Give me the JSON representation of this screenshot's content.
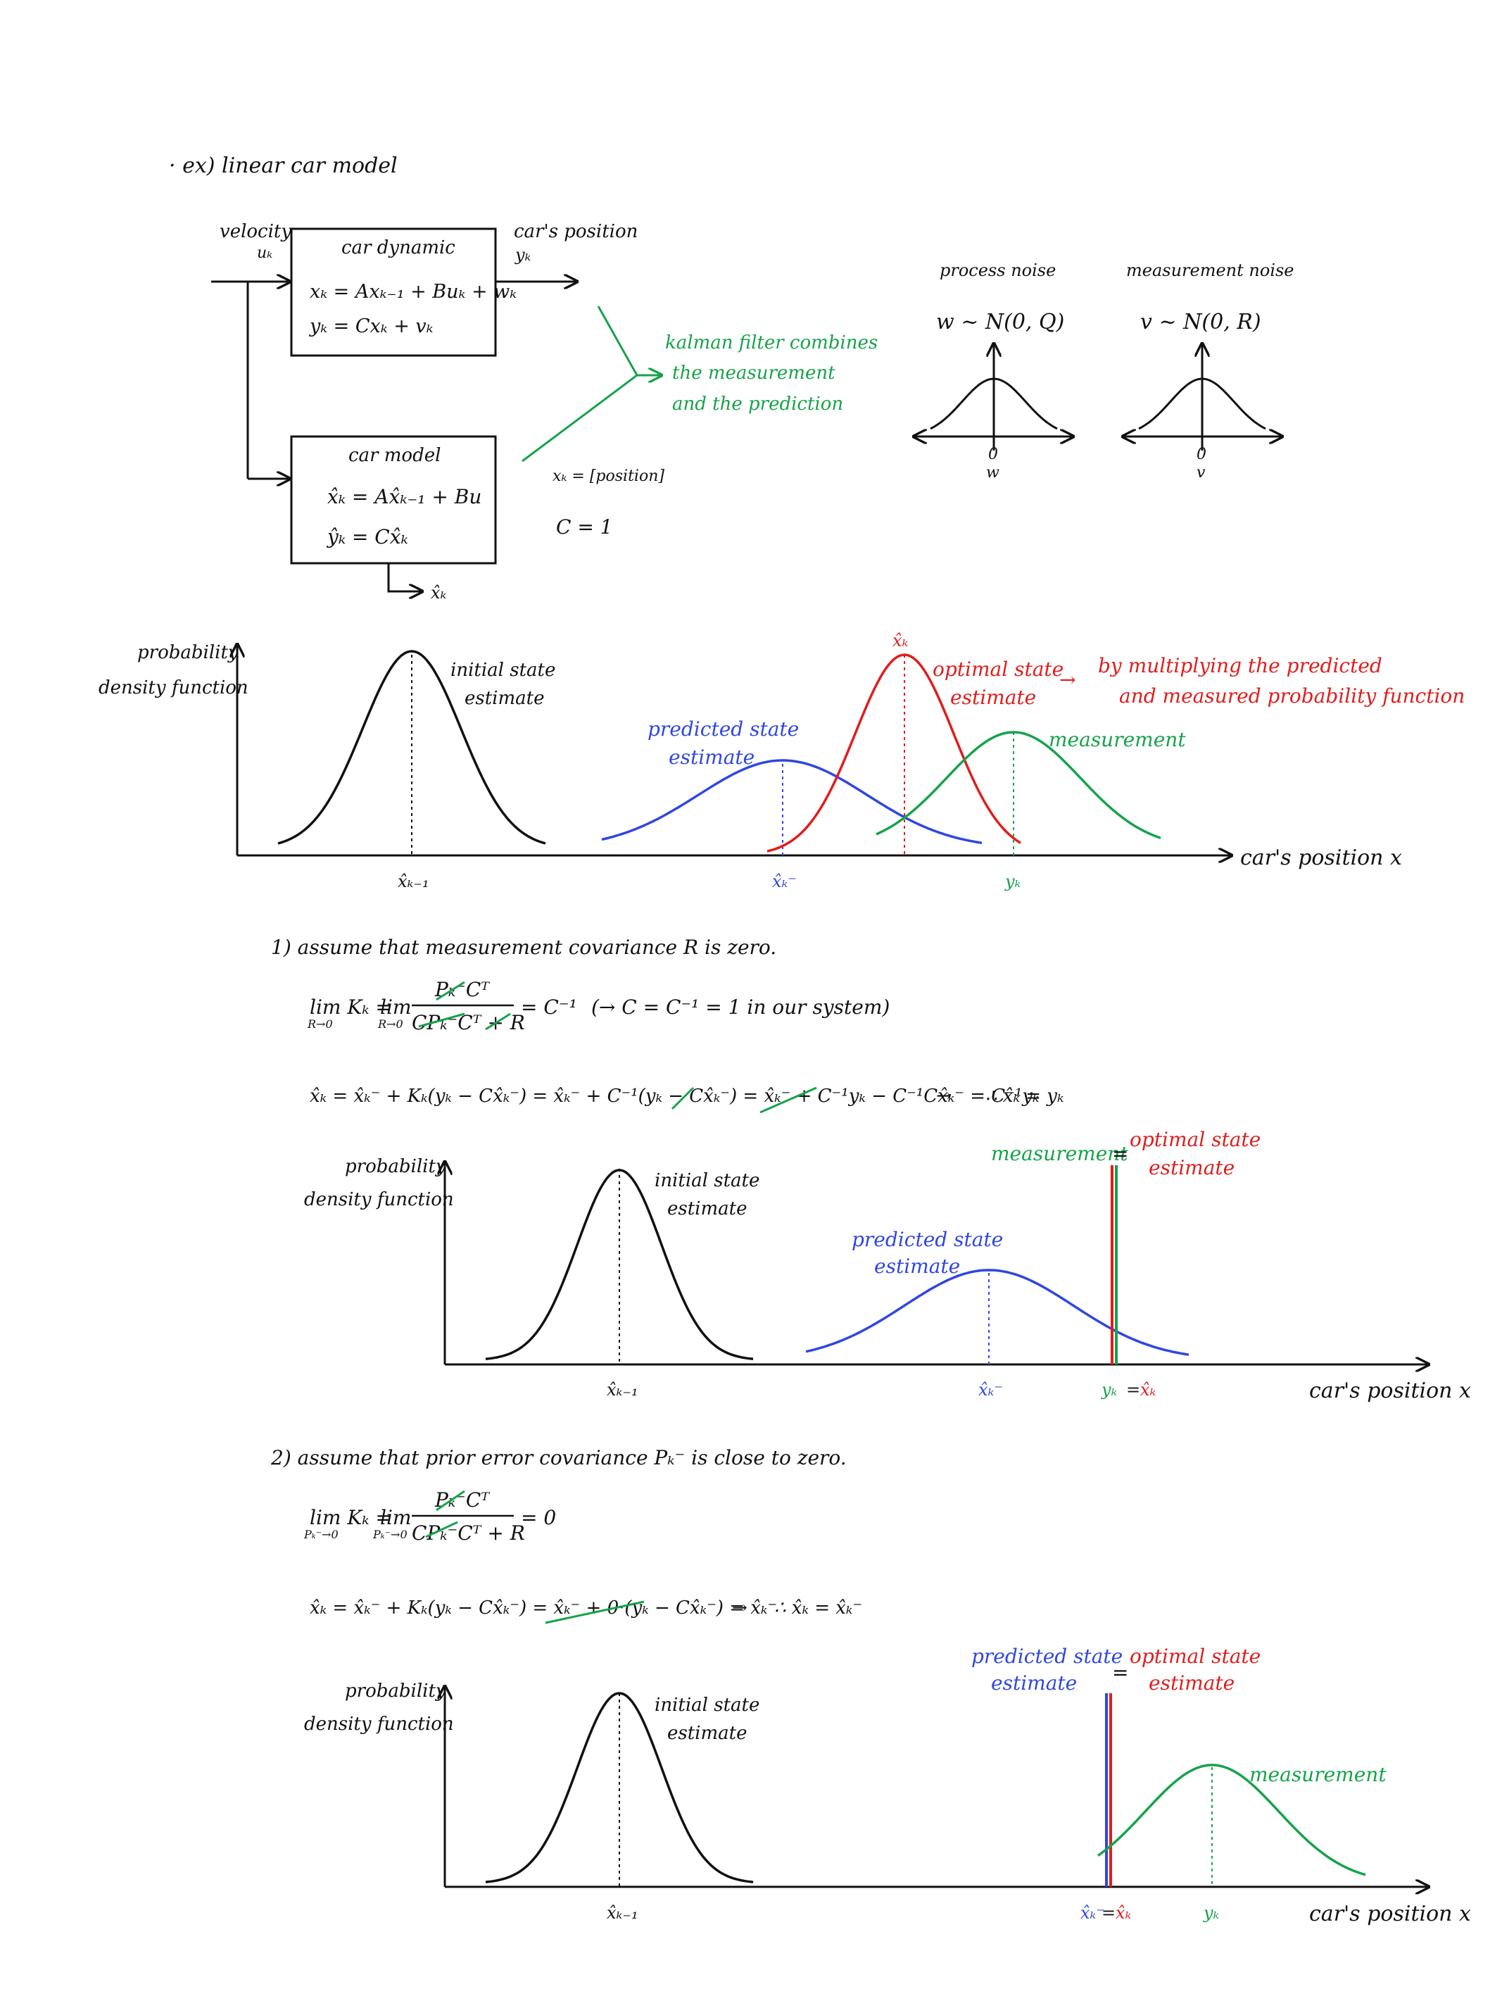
{
  "colors": {
    "ink": "#111111",
    "measurement": "#16a34a",
    "optimal": "#e11d1d",
    "predicted": "#2f47e0"
  },
  "intro": {
    "title": "· ex) linear car model"
  },
  "block_diagram": {
    "input_label": "velocity",
    "input_symbol": "uₖ",
    "output_label": "car's position",
    "output_symbol": "yₖ",
    "plant_title": "car dynamic",
    "plant_eq1": "xₖ = Axₖ₋₁ + Buₖ + wₖ",
    "plant_eq2": "yₖ = Cxₖ + vₖ",
    "model_title": "car model",
    "model_eq1": "x̂ₖ = Ax̂ₖ₋₁ + Bu",
    "model_eq2": "ŷₖ = Cx̂ₖ",
    "model_out": "x̂ₖ",
    "kalman_note": [
      "kalman filter combines",
      "the measurement",
      "and the prediction"
    ],
    "state_def": "xₖ = [position]",
    "c_def": "C = 1"
  },
  "noise": {
    "process_title": "process noise",
    "process_dist": "w ~ N(0, Q)",
    "process_zero": "0",
    "process_var": "w",
    "measure_title": "measurement noise",
    "measure_dist": "v ~ N(0, R)",
    "measure_zero": "0",
    "measure_var": "v"
  },
  "plot1": {
    "ylabel": [
      "probability",
      "density function"
    ],
    "initial": [
      "initial state",
      "estimate"
    ],
    "predicted": [
      "predicted state",
      "estimate"
    ],
    "optimal": [
      "optimal state",
      "estimate"
    ],
    "arrow_note": "→",
    "optimal_note": [
      "by multiplying the predicted",
      "and measured probability function"
    ],
    "measurement": "measurement",
    "x_prev": "x̂ₖ₋₁",
    "x_pred": "x̂ₖ⁻",
    "x_top": "x̂ₖ",
    "x_meas": "yₖ",
    "xlabel": "car's position x"
  },
  "case1": {
    "heading": "1) assume that measurement covariance R is zero.",
    "lim_left": "lim Kₖ =",
    "lim_sub": "R→0",
    "lim_mid": "lim",
    "frac_num": "Pₖ⁻Cᵀ",
    "frac_den": "CPₖ⁻Cᵀ + R",
    "lim_result": "= C⁻¹",
    "note": "(→ C = C⁻¹ = 1  in our system)",
    "update": "x̂ₖ = x̂ₖ⁻ + Kₖ(yₖ − Cx̂ₖ⁻) = x̂ₖ⁻ + C⁻¹(yₖ − Cx̂ₖ⁻) = x̂ₖ⁻ + C⁻¹yₖ − C⁻¹Cx̂ₖ⁻ = C⁻¹yₖ",
    "arrow": "→",
    "conclusion": "∴ x̂ₖ = yₖ"
  },
  "plot2": {
    "ylabel": [
      "probability",
      "density function"
    ],
    "initial": [
      "initial state",
      "estimate"
    ],
    "predicted": [
      "predicted state",
      "estimate"
    ],
    "measurement": "measurement",
    "equals": "=",
    "optimal": [
      "optimal state",
      "estimate"
    ],
    "x_prev": "x̂ₖ₋₁",
    "x_pred": "x̂ₖ⁻",
    "x_meas": "yₖ",
    "x_eq": "=",
    "x_opt": "x̂ₖ",
    "xlabel": "car's position x"
  },
  "case2": {
    "heading": "2) assume that prior error covariance Pₖ⁻ is close to zero.",
    "lim_left": "lim Kₖ =",
    "lim_sub": "Pₖ⁻→0",
    "lim_mid": "lim",
    "frac_num": "Pₖ⁻Cᵀ",
    "frac_den": "CPₖ⁻Cᵀ + R",
    "lim_result": "= 0",
    "update": "x̂ₖ = x̂ₖ⁻ + Kₖ(yₖ − Cx̂ₖ⁻) = x̂ₖ⁻ + 0·(yₖ − Cx̂ₖ⁻) = x̂ₖ⁻",
    "arrow": "→",
    "conclusion": "∴ x̂ₖ = x̂ₖ⁻"
  },
  "plot3": {
    "ylabel": [
      "probability",
      "density function"
    ],
    "initial": [
      "initial state",
      "estimate"
    ],
    "predicted": [
      "predicted state",
      "estimate"
    ],
    "equals": "=",
    "optimal": [
      "optimal state",
      "estimate"
    ],
    "measurement": "measurement",
    "x_prev": "x̂ₖ₋₁",
    "x_pred": "x̂ₖ⁻",
    "x_eq": "=",
    "x_opt": "x̂ₖ",
    "x_meas": "yₖ",
    "xlabel": "car's position x"
  }
}
